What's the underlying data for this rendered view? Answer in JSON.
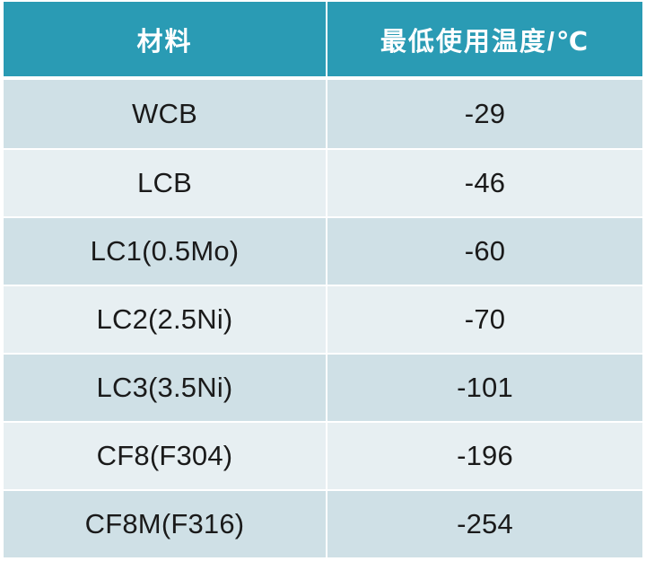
{
  "table": {
    "headers": [
      "材料",
      "最低使用温度/℃"
    ],
    "rows": [
      {
        "material": "WCB",
        "min_temp": "-29"
      },
      {
        "material": "LCB",
        "min_temp": "-46"
      },
      {
        "material": "LC1(0.5Mo)",
        "min_temp": "-60"
      },
      {
        "material": "LC2(2.5Ni)",
        "min_temp": "-70"
      },
      {
        "material": "LC3(3.5Ni)",
        "min_temp": "-101"
      },
      {
        "material": "CF8(F304)",
        "min_temp": "-196"
      },
      {
        "material": "CF8M(F316)",
        "min_temp": "-254"
      }
    ]
  },
  "colors": {
    "header_bg": "#2a9bb4",
    "row_dark": "#cfe0e6",
    "row_light": "#e7eff2"
  }
}
